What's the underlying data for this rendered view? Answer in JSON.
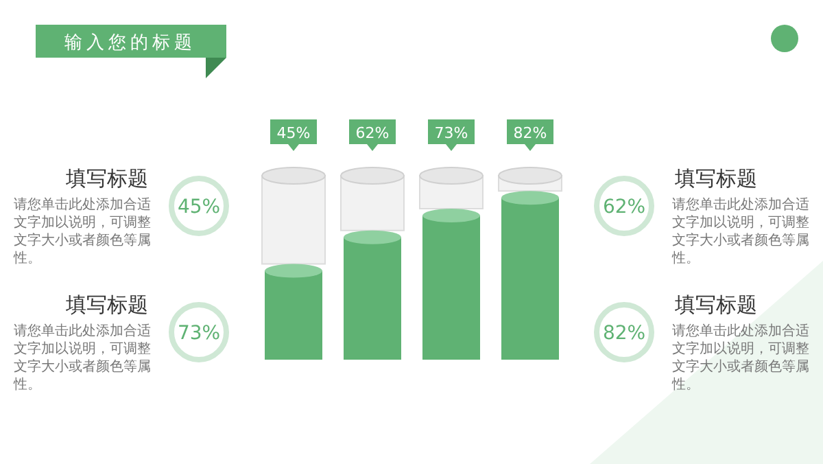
{
  "chart_data": {
    "type": "bar",
    "title": "输入您的标题",
    "categories": [
      null,
      null,
      null,
      null
    ],
    "values": [
      45,
      62,
      73,
      82
    ],
    "value_labels": [
      "45%",
      "62%",
      "73%",
      "82%"
    ],
    "color": "#5fb273",
    "annotations": [
      "填写标题",
      "请您单击此处添加合适文字加以说明，可调整文字大小或者颜色等属性。",
      "45%",
      "填写标题",
      "请您单击此处添加合适文字加以说明，可调整文字大小或者颜色等属性。",
      "73%",
      "填写标题",
      "请您单击此处添加合适文字加以说明，可调整文字大小或者颜色等属性。",
      "62%",
      "填写标题",
      "请您单击此处添加合适文字加以说明，可调整文字大小或者颜色等属性。",
      "82%"
    ]
  }
}
